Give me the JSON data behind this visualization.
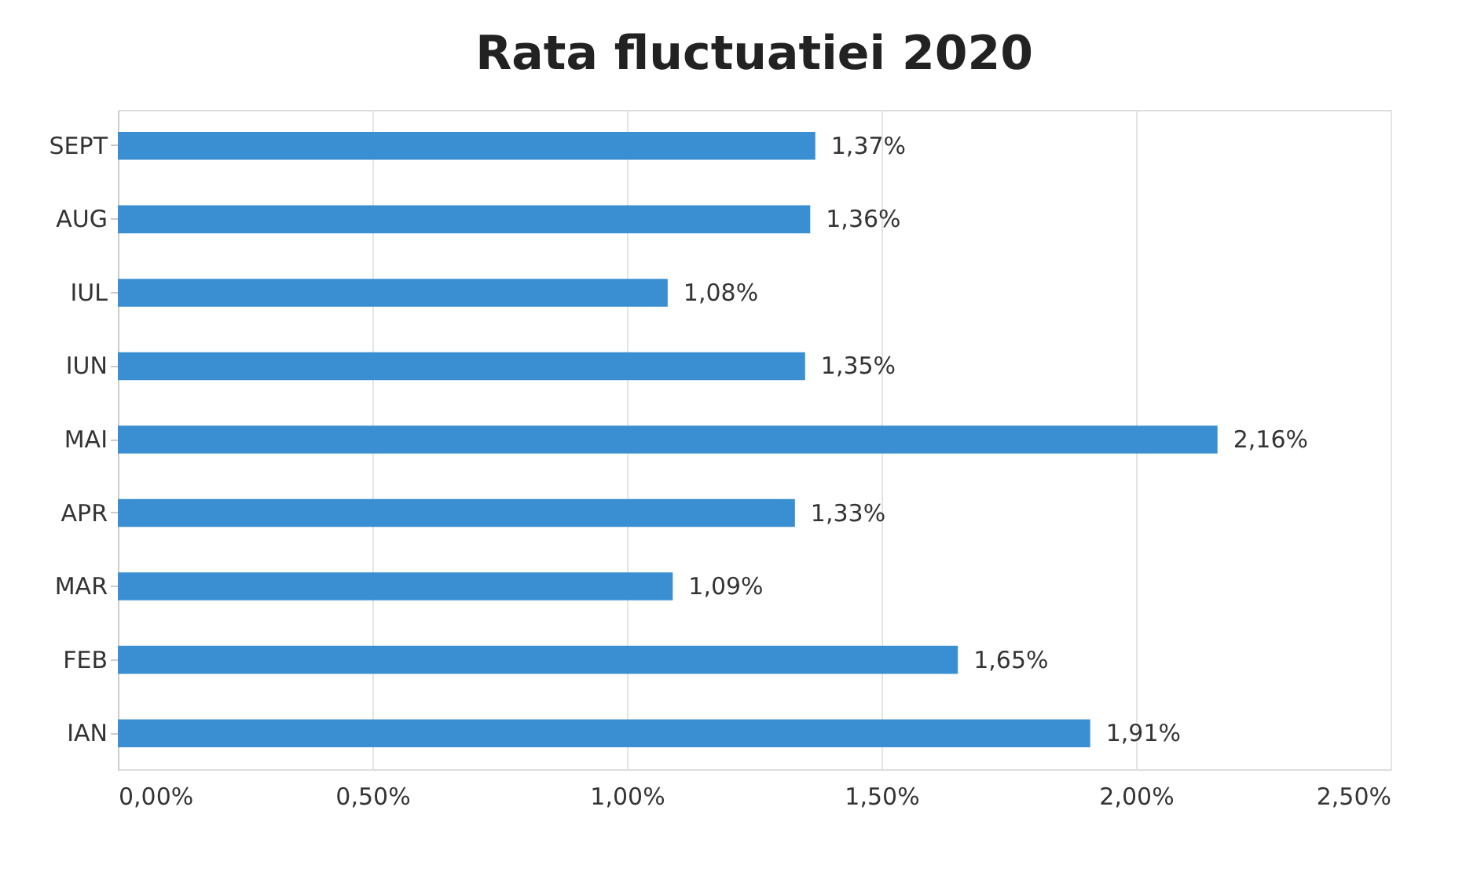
{
  "chart_data": {
    "type": "bar",
    "orientation": "horizontal",
    "title": "Rata fluctuatiei 2020",
    "categories": [
      "SEPT",
      "AUG",
      "IUL",
      "IUN",
      "MAI",
      "APR",
      "MAR",
      "FEB",
      "IAN"
    ],
    "values": [
      1.37,
      1.36,
      1.08,
      1.35,
      2.16,
      1.33,
      1.09,
      1.65,
      1.91
    ],
    "value_labels": [
      "1,37%",
      "1,36%",
      "1,08%",
      "1,35%",
      "2,16%",
      "1,33%",
      "1,09%",
      "1,65%",
      "1,91%"
    ],
    "color": "#3a8fd2",
    "xlim": [
      0,
      2.5
    ],
    "xticks": [
      {
        "value": 0,
        "label": "0,00%"
      },
      {
        "value": 0.5,
        "label": "0,50%"
      },
      {
        "value": 1.0,
        "label": "1,00%"
      },
      {
        "value": 1.5,
        "label": "1,50%"
      },
      {
        "value": 2.0,
        "label": "2,00%"
      },
      {
        "value": 2.5,
        "label": "2,50%"
      }
    ],
    "grid": "x"
  }
}
